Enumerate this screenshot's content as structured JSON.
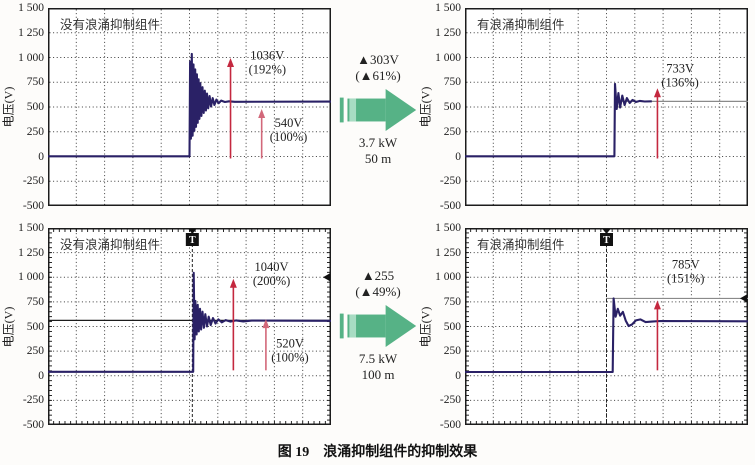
{
  "caption": {
    "figure_label": "图 19",
    "figure_title": "浪涌抑制组件的抑制效果"
  },
  "colors": {
    "trace": "#2a2166",
    "red": "#c4283f",
    "red_light": "#d2687a",
    "green": "#56b286",
    "green_light": "#a8dcc3",
    "grid": "#3c3c3c",
    "ref_gray": "#8a8a8a",
    "ref_dark": "#1c1c1c"
  },
  "y_axis": {
    "label": "电压(V)",
    "ticks": [
      "1 500",
      "1 250",
      "1 000",
      "750",
      "500",
      "250",
      "0",
      "-250",
      "-500"
    ],
    "max": 1500,
    "min": -500
  },
  "middle_annotations": [
    {
      "delta_voltage": "▲303V",
      "delta_percent": "(▲61%)",
      "power": "3.7 kW",
      "distance": "50 m"
    },
    {
      "delta_voltage": "▲255",
      "delta_percent": "(▲49%)",
      "power": "7.5 kW",
      "distance": "100 m"
    }
  ],
  "chart_data": [
    {
      "position": "top-left",
      "type": "line",
      "title": "没有浪涌抑制组件",
      "ylabel": "电压(V)",
      "ylim": [
        -500,
        1500
      ],
      "x_divisions": 10,
      "grid": "dotted",
      "edge_ticks": false,
      "trigger": null,
      "peak_voltage": "1036V",
      "peak_percent": "(192%)",
      "base_voltage": "540V",
      "base_percent": "(100%)",
      "waveform": [
        [
          0,
          2
        ],
        [
          0.5,
          2
        ],
        [
          0.502,
          960
        ],
        [
          0.505,
          180
        ],
        [
          0.508,
          1036
        ],
        [
          0.511,
          210
        ],
        [
          0.514,
          930
        ],
        [
          0.517,
          260
        ],
        [
          0.52,
          880
        ],
        [
          0.523,
          300
        ],
        [
          0.526,
          830
        ],
        [
          0.529,
          340
        ],
        [
          0.532,
          780
        ],
        [
          0.535,
          380
        ],
        [
          0.538,
          740
        ],
        [
          0.542,
          410
        ],
        [
          0.546,
          700
        ],
        [
          0.55,
          440
        ],
        [
          0.554,
          665
        ],
        [
          0.558,
          465
        ],
        [
          0.562,
          635
        ],
        [
          0.566,
          487
        ],
        [
          0.571,
          610
        ],
        [
          0.576,
          505
        ],
        [
          0.582,
          590
        ],
        [
          0.588,
          520
        ],
        [
          0.595,
          575
        ],
        [
          0.603,
          538
        ],
        [
          0.612,
          565
        ],
        [
          0.625,
          550
        ],
        [
          0.64,
          558
        ],
        [
          0.66,
          553
        ],
        [
          1,
          555
        ]
      ],
      "ref_lines": [],
      "right_markers": [],
      "arrows": [
        {
          "x": 0.645,
          "from": -20,
          "to": 995,
          "light": false,
          "labels": [
            "1036V",
            "(192%)"
          ],
          "label_x": 0.775,
          "label_v": 980
        },
        {
          "x": 0.755,
          "from": -20,
          "to": 480,
          "light": true,
          "labels": [
            "540V",
            "(100%)"
          ],
          "label_x": 0.85,
          "label_v": 300
        }
      ]
    },
    {
      "position": "top-right",
      "type": "line",
      "title": "有浪涌抑制组件",
      "ylabel": "电压(V)",
      "ylim": [
        -500,
        1500
      ],
      "x_divisions": 10,
      "grid": "dotted",
      "edge_ticks": false,
      "trigger": null,
      "peak_voltage": "733V",
      "peak_percent": "(136%)",
      "waveform": [
        [
          0,
          2
        ],
        [
          0.528,
          2
        ],
        [
          0.53,
          733
        ],
        [
          0.536,
          480
        ],
        [
          0.542,
          640
        ],
        [
          0.548,
          495
        ],
        [
          0.556,
          615
        ],
        [
          0.564,
          520
        ],
        [
          0.572,
          590
        ],
        [
          0.582,
          540
        ],
        [
          0.592,
          572
        ],
        [
          0.604,
          550
        ],
        [
          0.618,
          562
        ],
        [
          0.635,
          556
        ],
        [
          0.66,
          558
        ]
      ],
      "ref_lines": [
        {
          "v": 557,
          "x0": 0.528,
          "x1": 1,
          "style": "gray"
        }
      ],
      "right_markers": [],
      "arrows": [
        {
          "x": 0.68,
          "from": -20,
          "to": 690,
          "light": false,
          "labels": [
            "733V",
            "(136%)"
          ],
          "label_x": 0.76,
          "label_v": 850
        }
      ]
    },
    {
      "position": "bottom-left",
      "type": "line",
      "title": "没有浪涌抑制组件",
      "ylabel": "电压(V)",
      "ylim": [
        -500,
        1500
      ],
      "x_divisions": 10,
      "grid": "dotted",
      "edge_ticks": true,
      "trigger": {
        "x": 0.51,
        "label": "T"
      },
      "peak_voltage": "1040V",
      "peak_percent": "(200%)",
      "base_voltage": "520V",
      "base_percent": "(100%)",
      "waveform": [
        [
          0,
          40
        ],
        [
          0.513,
          40
        ],
        [
          0.515,
          1045
        ],
        [
          0.518,
          370
        ],
        [
          0.521,
          760
        ],
        [
          0.525,
          420
        ],
        [
          0.529,
          720
        ],
        [
          0.533,
          450
        ],
        [
          0.537,
          680
        ],
        [
          0.541,
          470
        ],
        [
          0.546,
          650
        ],
        [
          0.551,
          487
        ],
        [
          0.556,
          625
        ],
        [
          0.562,
          500
        ],
        [
          0.568,
          600
        ],
        [
          0.575,
          515
        ],
        [
          0.583,
          585
        ],
        [
          0.592,
          530
        ],
        [
          0.602,
          572
        ],
        [
          0.614,
          542
        ],
        [
          0.628,
          565
        ],
        [
          0.645,
          550
        ],
        [
          0.665,
          562
        ],
        [
          0.69,
          552
        ],
        [
          0.72,
          560
        ],
        [
          1,
          558
        ]
      ],
      "ref_lines": [
        {
          "v": 562,
          "x0": 0,
          "x1": 1,
          "style": "dark"
        }
      ],
      "right_markers": [
        {
          "v": 1000
        }
      ],
      "arrows": [
        {
          "x": 0.655,
          "from": 55,
          "to": 985,
          "light": false,
          "labels": [
            "1040V",
            "(200%)"
          ],
          "label_x": 0.79,
          "label_v": 1065
        },
        {
          "x": 0.77,
          "from": 55,
          "to": 575,
          "light": true,
          "labels": [
            "520V",
            "(100%)"
          ],
          "label_x": 0.855,
          "label_v": 285
        }
      ]
    },
    {
      "position": "bottom-right",
      "type": "line",
      "title": "有浪涌抑制组件",
      "ylabel": "电压(V)",
      "ylim": [
        -500,
        1500
      ],
      "x_divisions": 10,
      "grid": "dotted",
      "edge_ticks": true,
      "trigger": {
        "x": 0.5,
        "label": "T"
      },
      "peak_voltage": "785V",
      "peak_percent": "(151%)",
      "waveform": [
        [
          0,
          38
        ],
        [
          0.522,
          38
        ],
        [
          0.525,
          785
        ],
        [
          0.532,
          600
        ],
        [
          0.54,
          680
        ],
        [
          0.548,
          610
        ],
        [
          0.558,
          648
        ],
        [
          0.568,
          560
        ],
        [
          0.578,
          505
        ],
        [
          0.59,
          520
        ],
        [
          0.604,
          562
        ],
        [
          0.62,
          572
        ],
        [
          0.638,
          545
        ],
        [
          0.66,
          550
        ],
        [
          0.69,
          556
        ],
        [
          1,
          553
        ]
      ],
      "ref_lines": [
        {
          "v": 785,
          "x0": 0.5,
          "x1": 1,
          "style": "gray"
        }
      ],
      "right_markers": [
        {
          "v": 785
        }
      ],
      "arrows": [
        {
          "x": 0.68,
          "from": 55,
          "to": 765,
          "light": false,
          "labels": [
            "785V",
            "(151%)"
          ],
          "label_x": 0.78,
          "label_v": 1090
        }
      ]
    }
  ]
}
